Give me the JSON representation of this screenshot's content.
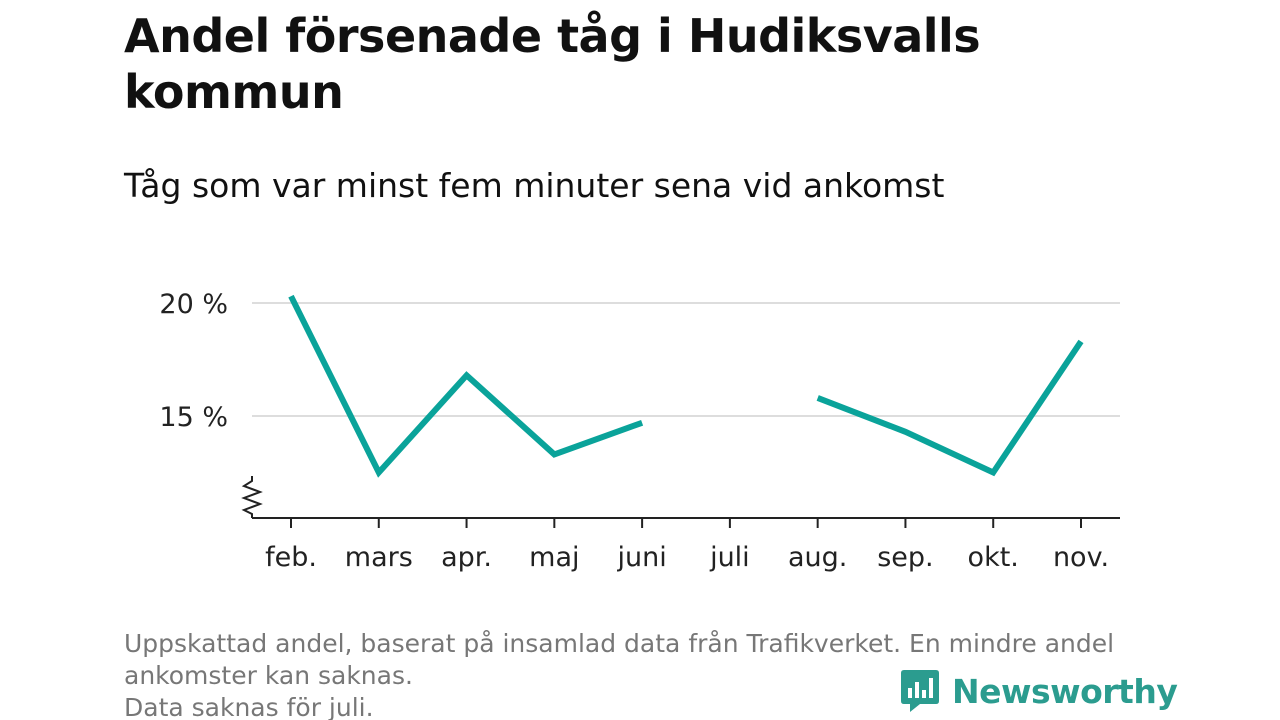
{
  "title": "Andel försenade tåg i Hudiksvalls kommun",
  "subtitle": "Tåg som var minst fem minuter sena vid ankomst",
  "footer": {
    "note_lines": [
      "Uppskattad andel, baserat på insamlad data från Trafikverket. En mindre andel",
      "ankomster kan saknas.",
      "Data saknas för juli."
    ]
  },
  "brand": {
    "name": "Newsworthy",
    "logo_icon": "newsworthy-bar-chart-icon",
    "color": "#2b9c8f"
  },
  "chart_data": {
    "type": "line",
    "title": "Andel försenade tåg i Hudiksvalls kommun",
    "subtitle": "Tåg som var minst fem minuter sena vid ankomst",
    "xlabel": "",
    "ylabel": "",
    "categories": [
      "feb.",
      "mars",
      "apr.",
      "maj",
      "juni",
      "juli",
      "aug.",
      "sep.",
      "okt.",
      "nov."
    ],
    "series": [
      {
        "values": [
          20.3,
          12.5,
          16.8,
          13.3,
          14.7,
          null,
          15.8,
          14.3,
          12.5,
          18.3
        ],
        "color": "#0aa39a"
      }
    ],
    "yticks": [
      15,
      20
    ],
    "ytick_labels": [
      "15 %",
      "20 %"
    ],
    "ylim": [
      11,
      21
    ],
    "y_axis_break": true,
    "grid": true,
    "missing": [
      "juli"
    ]
  }
}
